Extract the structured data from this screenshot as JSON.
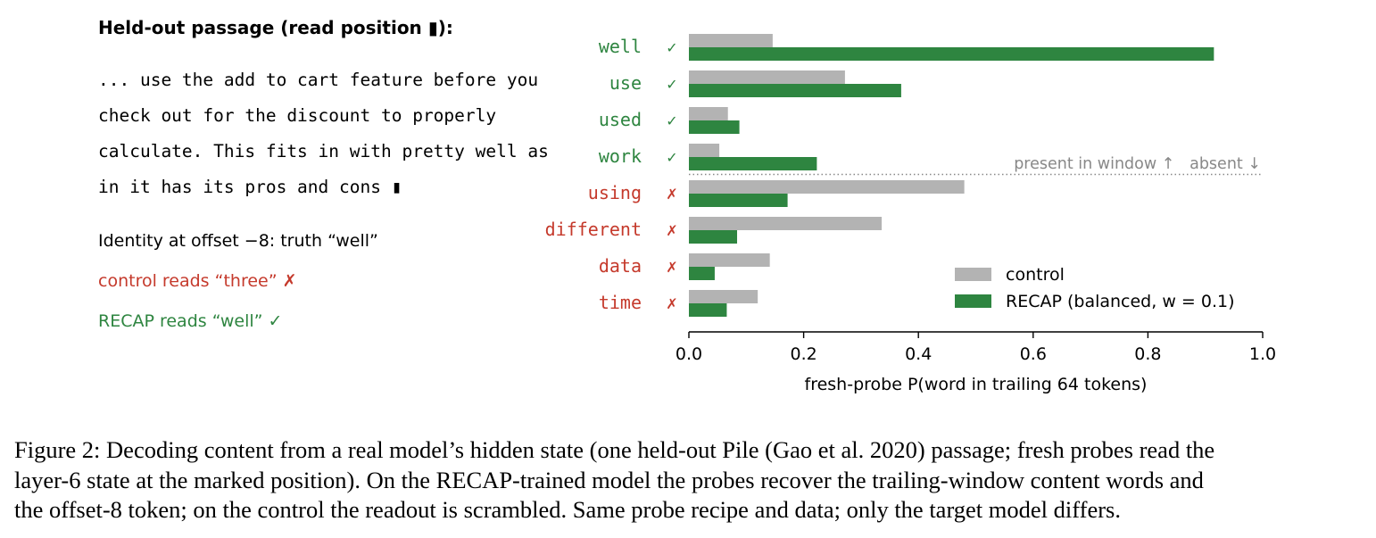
{
  "passage_panel": {
    "heading": "Held-out passage (read position ▮):",
    "lines": [
      "... use the add to cart feature before you",
      "check out for the discount to properly",
      "calculate. This fits in with pretty well as",
      "in it has its pros and cons ▮"
    ],
    "identity_note": "Identity at offset −8: truth “well”",
    "control_read": "control reads “three” ✗",
    "recap_read": "RECAP reads “well” ✓"
  },
  "colors": {
    "control": "#b3b3b3",
    "recap": "#2e8540",
    "present_word": "#2e8540",
    "absent_word": "#c53a2c",
    "divider": "#888888"
  },
  "chart_data": {
    "type": "bar",
    "orientation": "horizontal",
    "categories": [
      "well",
      "use",
      "used",
      "work",
      "using",
      "different",
      "data",
      "time"
    ],
    "category_marks": [
      "✓",
      "✓",
      "✓",
      "✓",
      "✗",
      "✗",
      "✗",
      "✗"
    ],
    "category_status": [
      "present",
      "present",
      "present",
      "present",
      "absent",
      "absent",
      "absent",
      "absent"
    ],
    "series": [
      {
        "name": "control",
        "values": [
          0.146,
          0.272,
          0.068,
          0.053,
          0.48,
          0.336,
          0.141,
          0.12
        ]
      },
      {
        "name": "RECAP (balanced, w = 0.1)",
        "values": [
          0.915,
          0.37,
          0.088,
          0.223,
          0.172,
          0.084,
          0.045,
          0.066
        ]
      }
    ],
    "xlabel": "fresh-probe P(word in trailing 64 tokens)",
    "xlim": [
      0,
      1.0
    ],
    "xticks": [
      "0.0",
      "0.2",
      "0.4",
      "0.6",
      "0.8",
      "1.0"
    ],
    "divider_label": "present in window ↑   absent ↓",
    "legend_position": "lower-right",
    "grid": false
  },
  "caption": {
    "lines": [
      "Figure 2: Decoding content from a real model’s hidden state (one held-out Pile (Gao et al. 2020) passage; fresh probes read the",
      "layer-6 state at the marked position). On the RECAP-trained model the probes recover the trailing-window content words and",
      "the offset-8 token; on the control the readout is scrambled. Same probe recipe and data; only the target model differs."
    ]
  }
}
